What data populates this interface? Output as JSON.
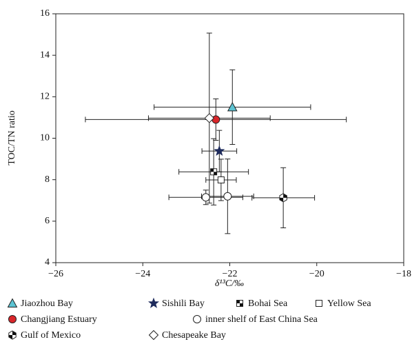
{
  "chart_data": {
    "type": "scatter",
    "xlabel": "δ¹³C/‰",
    "ylabel": "TOC/TN ratio",
    "xlim": [
      -26,
      -18
    ],
    "xticks": [
      {
        "value": -26,
        "label": "−26"
      },
      {
        "value": -24,
        "label": "−24"
      },
      {
        "value": -22,
        "label": "−22"
      },
      {
        "value": -20,
        "label": "−20"
      },
      {
        "value": -18,
        "label": "−18"
      }
    ],
    "ylim": [
      4,
      16
    ],
    "yticks": [
      4,
      6,
      8,
      10,
      12,
      14,
      16
    ],
    "grid": false,
    "legend": "bottom",
    "series": [
      {
        "name": "Jiaozhou Bay",
        "marker": "triangle",
        "color": "#5cc3d2",
        "x": [
          -21.94
        ],
        "y": [
          11.5
        ],
        "xerr": [
          1.8
        ],
        "yerr": [
          1.8
        ]
      },
      {
        "name": "Sishili Bay",
        "marker": "star",
        "color": "#1e2b5c",
        "x": [
          -22.24
        ],
        "y": [
          9.38
        ],
        "xerr": [
          0.4
        ],
        "yerr": [
          1.0
        ]
      },
      {
        "name": "Bohai Sea",
        "marker": "halfsquare",
        "color": "#111111",
        "x": [
          -22.37
        ],
        "y": [
          8.38
        ],
        "xerr": [
          0.8
        ],
        "yerr": [
          1.6
        ]
      },
      {
        "name": "Yellow Sea",
        "marker": "square",
        "color": "#ffffff",
        "x": [
          -22.2
        ],
        "y": [
          7.99
        ],
        "xerr": [
          0.35
        ],
        "yerr": [
          1.0
        ]
      },
      {
        "name": "Changjiang Estuary",
        "marker": "circle",
        "color": "#d9262a",
        "x": [
          -22.32
        ],
        "y": [
          10.9
        ],
        "xerr": [
          3.0
        ],
        "yerr": [
          1.0
        ]
      },
      {
        "name": "inner shelf of East China Sea",
        "marker": "circle",
        "color": "#ffffff",
        "x": [
          -22.55,
          -22.05
        ],
        "y": [
          7.15,
          7.2
        ],
        "xerr": [
          0.85,
          0.6
        ],
        "yerr": [
          0.35,
          1.8
        ]
      },
      {
        "name": "Gulf of Mexico",
        "marker": "hexagon",
        "color": "#111111",
        "x": [
          -20.77
        ],
        "y": [
          7.13
        ],
        "xerr": [
          0.72
        ],
        "yerr": [
          1.45
        ]
      },
      {
        "name": "Chesapeake Bay",
        "marker": "diamond",
        "color": "#ffffff",
        "x": [
          -22.47
        ],
        "y": [
          10.97
        ],
        "xerr": [
          1.4
        ],
        "yerr": [
          4.1
        ]
      }
    ]
  }
}
